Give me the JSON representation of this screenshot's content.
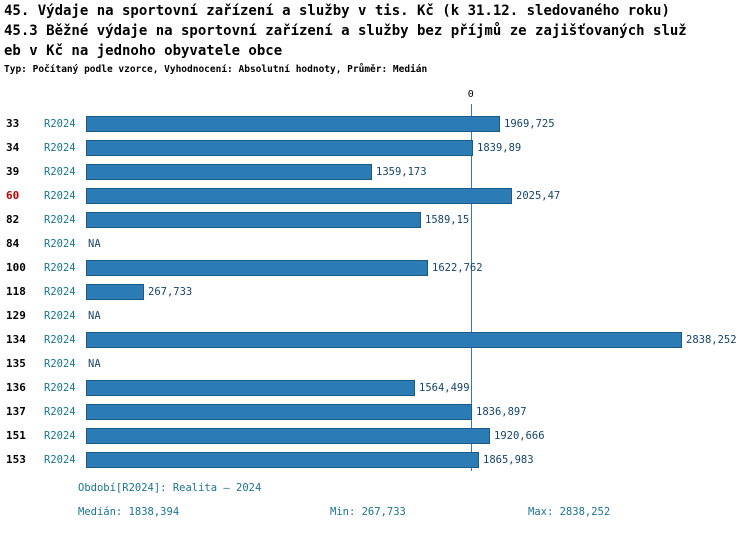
{
  "title": {
    "line1": "45. Výdaje na sportovní zařízení a služby v tis. Kč (k 31.12. sledovaného roku)",
    "line2": "45.3 Běžné výdaje na sportovní zařízení a služby bez příjmů ze zajišťovaných služ",
    "line3": "eb v Kč na jednoho obyvatele obce",
    "meta": "Typ: Počítaný podle vzorce, Vyhodnocení: Absolutní hodnoty, Průměr: Medián"
  },
  "chart_data": {
    "type": "bar",
    "orientation": "horizontal",
    "title": "45. Výdaje na sportovní zařízení a služby v tis. Kč (k 31.12. sledovaného roku)",
    "subtitle": "45.3 Běžné výdaje na sportovní zařízení a služby bez příjmů ze zajišťovaných služeb v Kč na jednoho obyvatele obce",
    "axis_top_label": "0",
    "xlim": [
      0,
      2838.252
    ],
    "grid": false,
    "legend": "none",
    "median_line_value": 1838.394,
    "xmax": 2838.252,
    "categories": [
      "33",
      "34",
      "39",
      "60",
      "82",
      "84",
      "100",
      "118",
      "129",
      "134",
      "135",
      "136",
      "137",
      "151",
      "153"
    ],
    "rows": [
      {
        "id": "33",
        "period": "R2024",
        "value": 1969.725,
        "label": "1969,725",
        "highlight": false
      },
      {
        "id": "34",
        "period": "R2024",
        "value": 1839.89,
        "label": "1839,89",
        "highlight": false
      },
      {
        "id": "39",
        "period": "R2024",
        "value": 1359.173,
        "label": "1359,173",
        "highlight": false
      },
      {
        "id": "60",
        "period": "R2024",
        "value": 2025.47,
        "label": "2025,47",
        "highlight": true
      },
      {
        "id": "82",
        "period": "R2024",
        "value": 1589.15,
        "label": "1589,15",
        "highlight": false
      },
      {
        "id": "84",
        "period": "R2024",
        "value": null,
        "label": "NA",
        "highlight": false
      },
      {
        "id": "100",
        "period": "R2024",
        "value": 1622.762,
        "label": "1622,762",
        "highlight": false
      },
      {
        "id": "118",
        "period": "R2024",
        "value": 267.733,
        "label": "267,733",
        "highlight": false
      },
      {
        "id": "129",
        "period": "R2024",
        "value": null,
        "label": "NA",
        "highlight": false
      },
      {
        "id": "134",
        "period": "R2024",
        "value": 2838.252,
        "label": "2838,252",
        "highlight": false
      },
      {
        "id": "135",
        "period": "R2024",
        "value": null,
        "label": "NA",
        "highlight": false
      },
      {
        "id": "136",
        "period": "R2024",
        "value": 1564.499,
        "label": "1564,499",
        "highlight": false
      },
      {
        "id": "137",
        "period": "R2024",
        "value": 1836.897,
        "label": "1836,897",
        "highlight": false
      },
      {
        "id": "151",
        "period": "R2024",
        "value": 1920.666,
        "label": "1920,666",
        "highlight": false
      },
      {
        "id": "153",
        "period": "R2024",
        "value": 1865.983,
        "label": "1865,983",
        "highlight": false
      }
    ]
  },
  "footer": {
    "period": "Období[R2024]: Realita – 2024",
    "median": "Medián: 1838,394",
    "min": "Min: 267,733",
    "max": "Max: 2838,252"
  },
  "colors": {
    "bar_fill": "#2b7bb4",
    "bar_border": "#1c5a85",
    "period_text": "#1b7391",
    "value_text": "#15456b",
    "footer_text": "#1b7391",
    "highlight_text": "#c00000",
    "median_line": "#2b7bb4"
  }
}
